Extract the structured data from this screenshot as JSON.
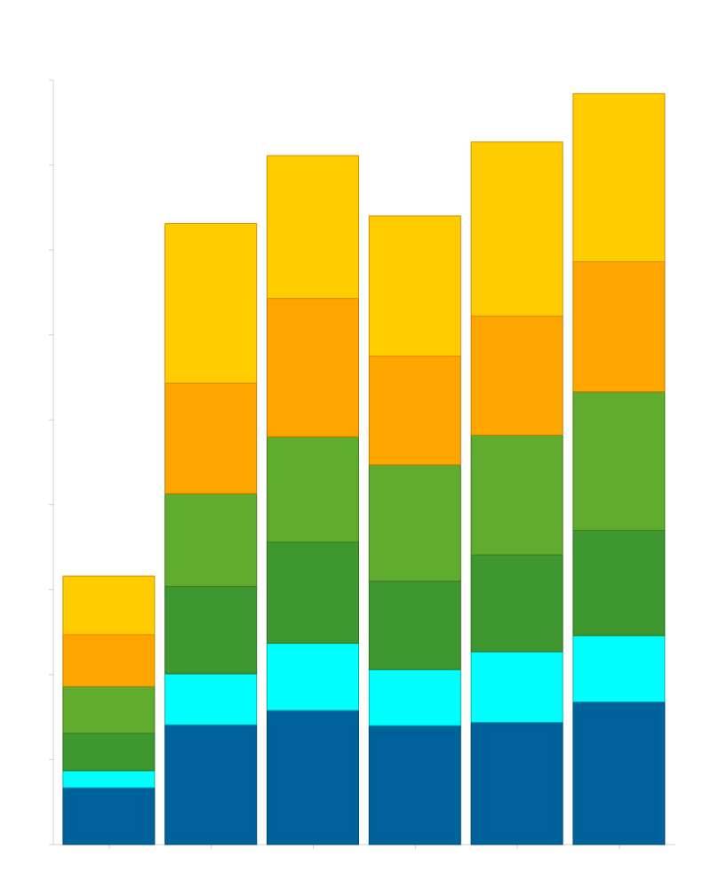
{
  "chart_data": {
    "type": "bar",
    "stacked": true,
    "title": "",
    "xlabel": "",
    "ylabel": "",
    "categories": [
      "",
      "",
      "",
      "",
      "",
      ""
    ],
    "ylim": [
      0,
      9
    ],
    "y_ticks": [
      0,
      1,
      2,
      3,
      4,
      5,
      6,
      7,
      8,
      9
    ],
    "grid": false,
    "legend": "none",
    "series": [
      {
        "color": "#00629B",
        "edge": "#004a75",
        "values": [
          0.67,
          1.41,
          1.58,
          1.4,
          1.44,
          1.68
        ]
      },
      {
        "color": "#00FFFF",
        "edge": "#00b3b3",
        "values": [
          0.2,
          0.6,
          0.79,
          0.66,
          0.83,
          0.78
        ]
      },
      {
        "color": "#3F972F",
        "edge": "#2c6e21",
        "values": [
          0.44,
          1.03,
          1.19,
          1.04,
          1.14,
          1.24
        ]
      },
      {
        "color": "#60AC2F",
        "edge": "#447a21",
        "values": [
          0.55,
          1.09,
          1.24,
          1.37,
          1.41,
          1.63
        ]
      },
      {
        "color": "#FFA500",
        "edge": "#c27d00",
        "values": [
          0.61,
          1.3,
          1.63,
          1.28,
          1.4,
          1.53
        ]
      },
      {
        "color": "#FFCC00",
        "edge": "#d98a00",
        "values": [
          0.69,
          1.88,
          1.68,
          1.65,
          2.05,
          1.98
        ]
      }
    ]
  }
}
